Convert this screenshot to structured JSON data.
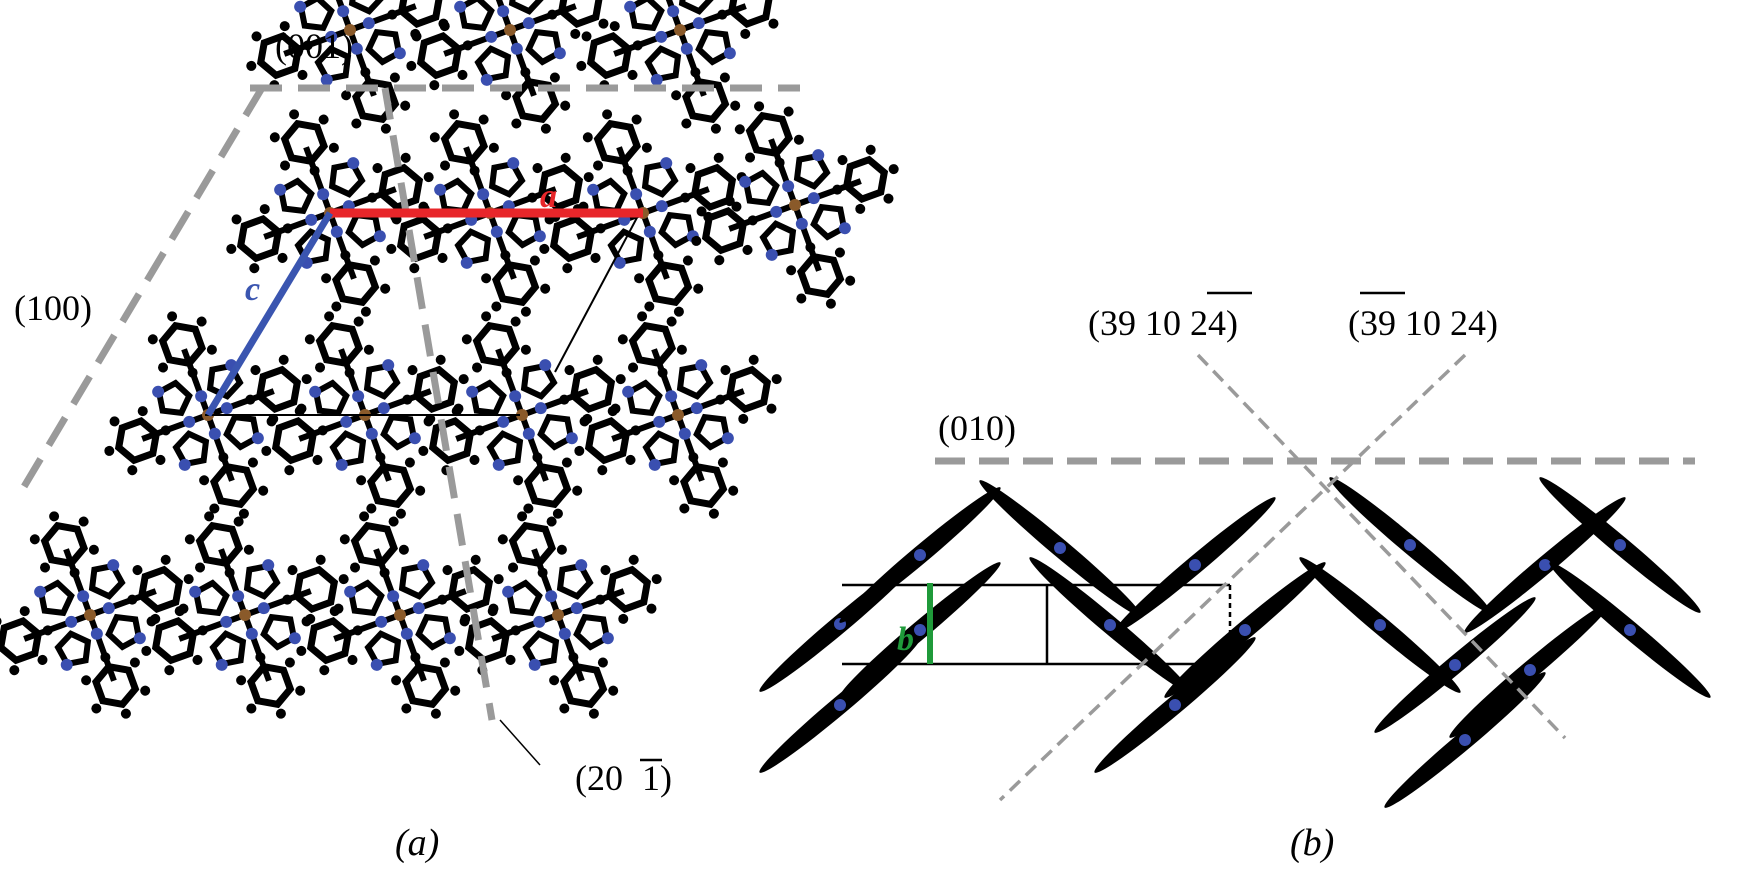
{
  "panel_a": {
    "caption": "(a)",
    "plane_labels": {
      "p001": "(001)",
      "p100": "(100)",
      "p201": "(20",
      "p201_bar": "1",
      "p201_close": ")"
    },
    "vectors": {
      "a": {
        "label": "a",
        "color": "#e8262a"
      },
      "c": {
        "label": "c",
        "color": "#3a55b0"
      }
    }
  },
  "panel_b": {
    "caption": "(b)",
    "plane_labels": {
      "p010": "(010)",
      "p1_pre": "(39 10 ",
      "p1_bar": "24",
      "p1_post": ")",
      "p2_pre": "(",
      "p2_bar": "39",
      "p2_post": " 10 24)"
    },
    "vectors": {
      "b": {
        "label": "b",
        "color": "#1f9a3a"
      }
    }
  },
  "colors": {
    "plane": "#9a9a9a",
    "atom_c": "#000000",
    "atom_n": "#3a4fb0",
    "metal": "#8a5a2a"
  }
}
